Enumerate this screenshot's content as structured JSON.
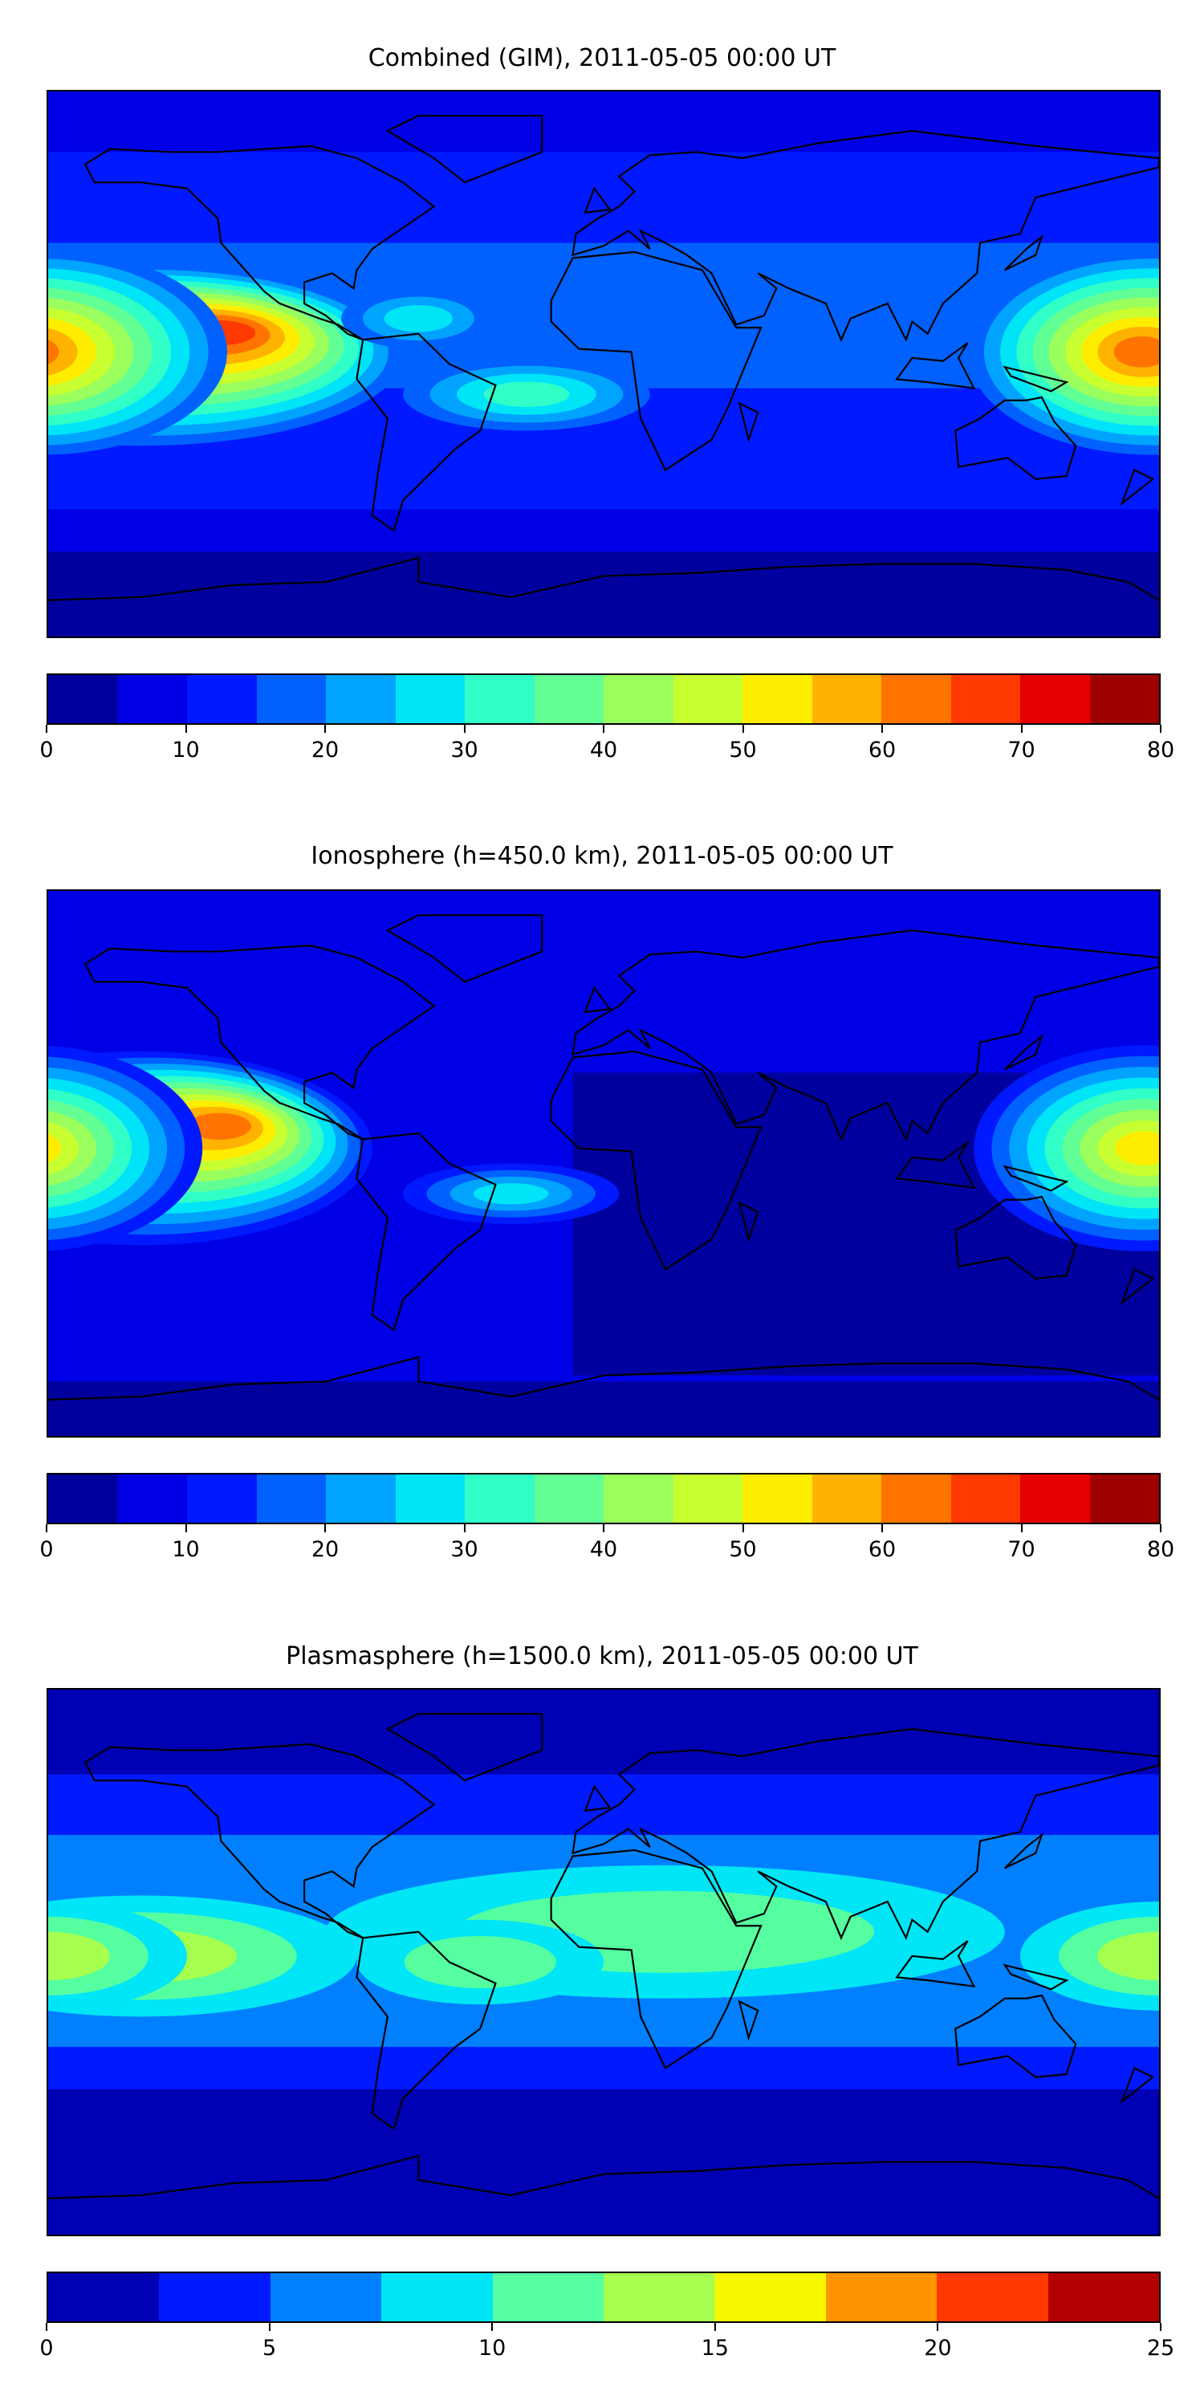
{
  "chart_data": [
    {
      "type": "heatmap",
      "title": "Combined (GIM), 2011-05-05 00:00 UT",
      "projection": "plate-carree",
      "extent": {
        "lon": [
          -180,
          180
        ],
        "lat": [
          -90,
          90
        ]
      },
      "colorbar": {
        "levels": [
          0,
          5,
          10,
          15,
          20,
          25,
          30,
          35,
          40,
          45,
          50,
          55,
          60,
          65,
          70,
          75,
          80
        ],
        "tick_labels": [
          "0",
          "10",
          "20",
          "30",
          "40",
          "50",
          "60",
          "70",
          "80"
        ],
        "tick_values": [
          0,
          10,
          20,
          30,
          40,
          50,
          60,
          70,
          80
        ],
        "colors": [
          "#00009f",
          "#0000e6",
          "#0019ff",
          "#0061ff",
          "#00a4ff",
          "#00e4f8",
          "#30ffc7",
          "#62ff94",
          "#9aff5d",
          "#c7ff30",
          "#ffed00",
          "#ffb300",
          "#ff7400",
          "#ff3900",
          "#e60000",
          "#9f0000"
        ]
      },
      "features": [
        {
          "name": "East Pacific maximum",
          "lon": -125,
          "lat": 13,
          "level_max": 70
        },
        {
          "name": "Central Pacific maximum",
          "lon": -170,
          "lat": -5,
          "level_max": 70
        },
        {
          "name": "West Pacific maximum",
          "lon": 178,
          "lat": 3,
          "level_max": 65
        },
        {
          "name": "South Atlantic enhancement",
          "lon": -25,
          "lat": -10,
          "level_max": 35
        }
      ]
    },
    {
      "type": "heatmap",
      "title": "Ionosphere  (h=450.0 km), 2011-05-05 00:00 UT",
      "projection": "plate-carree",
      "extent": {
        "lon": [
          -180,
          180
        ],
        "lat": [
          -90,
          90
        ]
      },
      "colorbar": {
        "levels": [
          0,
          5,
          10,
          15,
          20,
          25,
          30,
          35,
          40,
          45,
          50,
          55,
          60,
          65,
          70,
          75,
          80
        ],
        "tick_labels": [
          "0",
          "10",
          "20",
          "30",
          "40",
          "50",
          "60",
          "70",
          "80"
        ],
        "tick_values": [
          0,
          10,
          20,
          30,
          40,
          50,
          60,
          70,
          80
        ],
        "colors": [
          "#00009f",
          "#0000e6",
          "#0019ff",
          "#0061ff",
          "#00a4ff",
          "#00e4f8",
          "#30ffc7",
          "#62ff94",
          "#9aff5d",
          "#c7ff30",
          "#ffed00",
          "#ffb300",
          "#ff7400",
          "#ff3900",
          "#e60000",
          "#9f0000"
        ]
      },
      "features": [
        {
          "name": "East Pacific maximum",
          "lon": -125,
          "lat": 13,
          "level_max": 65
        },
        {
          "name": "Central Pacific maximum",
          "lon": -170,
          "lat": -5,
          "level_max": 60
        },
        {
          "name": "West Pacific maximum",
          "lon": 178,
          "lat": 3,
          "level_max": 50
        }
      ]
    },
    {
      "type": "heatmap",
      "title": "Plasmasphere (h=1500.0 km), 2011-05-05 00:00 UT",
      "projection": "plate-carree",
      "extent": {
        "lon": [
          -180,
          180
        ],
        "lat": [
          -90,
          90
        ]
      },
      "colorbar": {
        "levels": [
          0,
          2.5,
          5,
          7.5,
          10,
          12.5,
          15,
          17.5,
          20,
          22.5,
          25
        ],
        "tick_labels": [
          "0",
          "5",
          "10",
          "15",
          "20",
          "25"
        ],
        "tick_values": [
          0,
          5,
          10,
          15,
          20,
          25
        ],
        "colors": [
          "#0000b4",
          "#0019ff",
          "#0080ff",
          "#00e6f6",
          "#55ffa0",
          "#a6ff4e",
          "#f7f700",
          "#ff9300",
          "#ff3700",
          "#b40000"
        ]
      },
      "features": [
        {
          "name": "Equatorial band",
          "lon": 0,
          "lat": 5,
          "level_max": 12.5
        },
        {
          "name": "Pacific maximum",
          "lon": -180,
          "lat": 0,
          "level_max": 15
        }
      ]
    }
  ]
}
